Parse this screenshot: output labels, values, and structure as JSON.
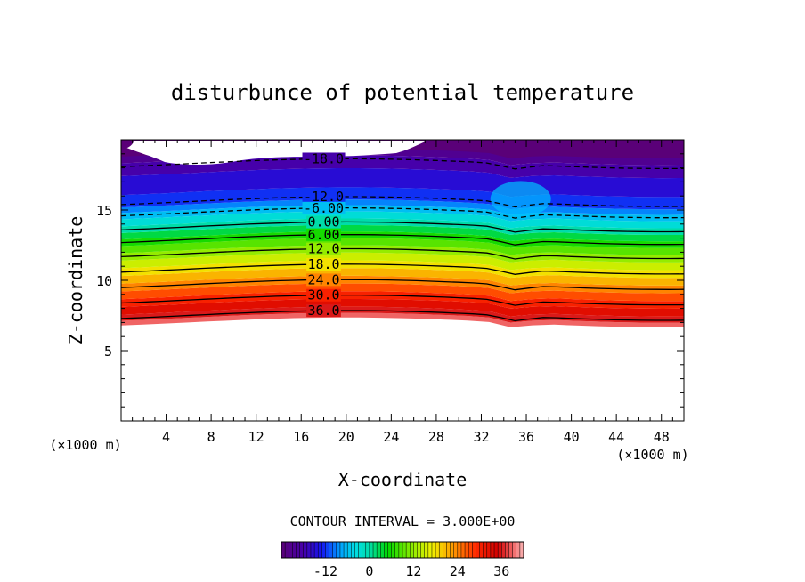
{
  "chart_data": {
    "type": "contour",
    "title": "disturbunce of potential temperature",
    "xlabel": "X-coordinate",
    "ylabel": "Z-coordinate",
    "x_unit": "(×1000 m)",
    "z_unit": "(×1000 m)",
    "xlim": [
      0,
      50
    ],
    "ylim": [
      0,
      20
    ],
    "x_ticks": [
      4,
      8,
      12,
      16,
      20,
      24,
      28,
      32,
      36,
      40,
      44,
      48
    ],
    "y_ticks": [
      5,
      10,
      15
    ],
    "contour_interval_label": "CONTOUR INTERVAL = 3.000E+00",
    "contour_interval": 3.0,
    "contour_labels": [
      "-18.0",
      "-12.0",
      "-6.00",
      "0.00",
      "6.00",
      "12.0",
      "18.0",
      "24.0",
      "30.0",
      "36.0"
    ],
    "level_heights_km": [
      {
        "value": -18,
        "z": 18.3
      },
      {
        "value": -12,
        "z": 15.6
      },
      {
        "value": -6,
        "z": 14.8
      },
      {
        "value": 0,
        "z": 13.8
      },
      {
        "value": 6,
        "z": 12.9
      },
      {
        "value": 12,
        "z": 11.9
      },
      {
        "value": 18,
        "z": 10.8
      },
      {
        "value": 24,
        "z": 9.7
      },
      {
        "value": 30,
        "z": 8.6
      },
      {
        "value": 36,
        "z": 7.5
      }
    ],
    "colorbar": {
      "min": -24,
      "max": 42,
      "ticks": [
        "-12",
        "0",
        "12",
        "24",
        "36"
      ]
    }
  }
}
